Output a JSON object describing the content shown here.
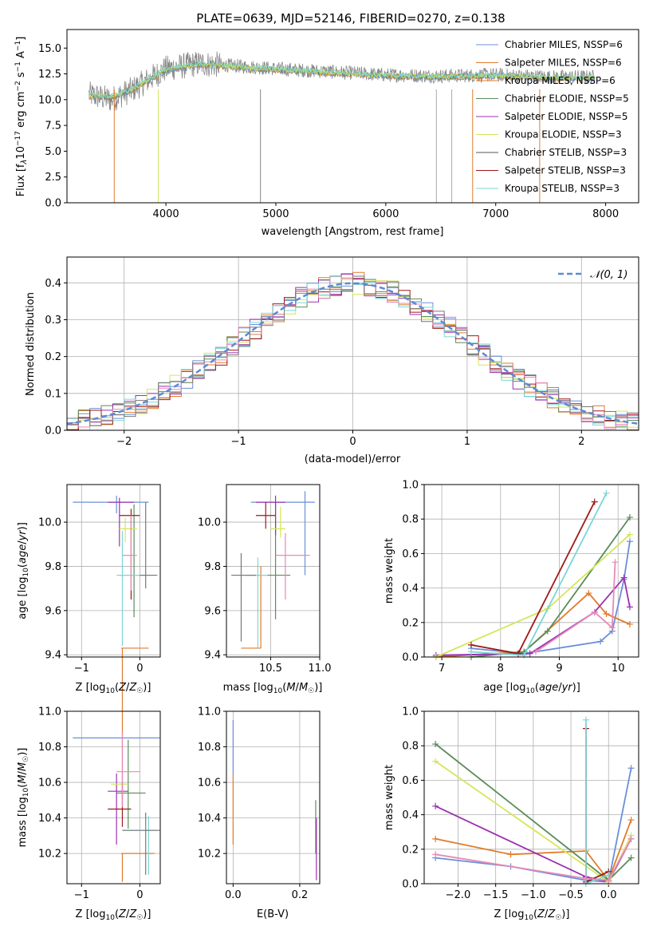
{
  "chart_data": [
    {
      "type": "line",
      "title": "PLATE=0639, MJD=52146, FIBERID=0270, z=0.138",
      "xlabel": "wavelength [Angstrom, rest frame]",
      "ylabel": "Flux [f_λ 10^-17 erg cm^-2 s^-1 A^-1]",
      "xlim": [
        3100,
        8300
      ],
      "ylim": [
        0,
        16.8
      ],
      "xticks": [
        4000,
        5000,
        6000,
        7000,
        8000
      ],
      "yticks": [
        0.0,
        2.5,
        5.0,
        7.5,
        10.0,
        12.5,
        15.0
      ],
      "legend_position": "upper-right",
      "legend": [
        "Chabrier MILES, N_SSP=6",
        "Salpeter MILES, N_SSP=6",
        "Kroupa MILES, N_SSP=6",
        "Chabrier ELODIE, N_SSP=5",
        "Salpeter ELODIE, N_SSP=5",
        "Kroupa ELODIE, N_SSP=3",
        "Chabrier STELIB, N_SSP=3",
        "Salpeter STELIB, N_SSP=3",
        "Kroupa STELIB, N_SSP=3"
      ],
      "data_series": {
        "x": [
          3300,
          3500,
          3700,
          4000,
          4300,
          4600,
          5000,
          5500,
          6000,
          6500,
          7000,
          7500,
          7900
        ],
        "y": [
          10.5,
          10.0,
          11.0,
          13.0,
          13.5,
          13.3,
          13.0,
          12.7,
          12.4,
          12.3,
          12.4,
          12.2,
          12.2
        ]
      },
      "model_series": {
        "x": [
          3300,
          3500,
          3700,
          4000,
          4300,
          4600,
          5000,
          5500,
          6000,
          6500,
          7000,
          7500,
          7900
        ],
        "y": [
          10.4,
          10.2,
          11.0,
          12.9,
          13.4,
          13.2,
          12.9,
          12.6,
          12.3,
          12.2,
          12.3,
          12.1,
          12.1
        ]
      }
    },
    {
      "type": "line",
      "xlabel": "(data-model)/error",
      "ylabel": "Normed distribution",
      "xlim": [
        -2.5,
        2.5
      ],
      "ylim": [
        0,
        0.47
      ],
      "xticks": [
        -2,
        -1,
        0,
        1,
        2
      ],
      "yticks": [
        0.0,
        0.1,
        0.2,
        0.3,
        0.4
      ],
      "legend": [
        "N(0,1)"
      ],
      "legend_position": "upper-right",
      "gaussian": {
        "mu": 0,
        "sigma": 1
      }
    },
    {
      "type": "scatter",
      "xlabel": "Z [log10(Z/Z_sun)]",
      "ylabel": "age  [log10(age/yr)]",
      "xlim": [
        -1.25,
        0.35
      ],
      "ylim": [
        9.39,
        10.17
      ],
      "xticks": [
        -1,
        0
      ],
      "yticks": [
        9.4,
        9.6,
        9.8,
        10.0
      ],
      "points": [
        {
          "x": -0.4,
          "y": 10.09,
          "xerr": [
            0.75,
            0.55
          ],
          "yerr": [
            0.05,
            0.03
          ]
        },
        {
          "x": -0.3,
          "y": 9.43,
          "xerr": [
            0.02,
            0.45
          ],
          "yerr": [
            0.68,
            0.0
          ]
        },
        {
          "x": -0.1,
          "y": 9.76,
          "xerr": [
            0.25,
            0.2
          ],
          "yerr": [
            0.19,
            0.32
          ]
        },
        {
          "x": -0.35,
          "y": 10.09,
          "xerr": [
            0.2,
            0.25
          ],
          "yerr": [
            0.2,
            0.02
          ]
        },
        {
          "x": -0.25,
          "y": 9.97,
          "xerr": [
            0.1,
            0.2
          ],
          "yerr": [
            0.06,
            0.05
          ]
        },
        {
          "x": -0.15,
          "y": 10.03,
          "xerr": [
            0.2,
            0.15
          ],
          "yerr": [
            0.38,
            0.03
          ]
        },
        {
          "x": -0.3,
          "y": 9.76,
          "xerr": [
            0.1,
            0.55
          ],
          "yerr": [
            0.32,
            0.2
          ]
        },
        {
          "x": -0.15,
          "y": 9.85,
          "xerr": [
            0.15,
            0.1
          ],
          "yerr": [
            0.16,
            0.18
          ]
        },
        {
          "x": 0.1,
          "y": 9.76,
          "xerr": [
            0.1,
            0.2
          ],
          "yerr": [
            0.06,
            0.33
          ]
        }
      ]
    },
    {
      "type": "scatter",
      "xlabel": "mass [log10(M/M_sun)]",
      "ylabel": "",
      "xlim": [
        10.05,
        11.0
      ],
      "ylim": [
        9.39,
        10.17
      ],
      "xticks": [
        10.5,
        11.0
      ],
      "yticks": [
        9.4,
        9.6,
        9.8,
        10.0
      ],
      "points": [
        {
          "x": 10.85,
          "y": 10.09,
          "xerr": [
            0.55,
            0.1
          ],
          "yerr": [
            0.33,
            0.05
          ]
        },
        {
          "x": 10.4,
          "y": 9.43,
          "xerr": [
            0.2,
            0.0
          ],
          "yerr": [
            0.0,
            0.37
          ]
        },
        {
          "x": 10.55,
          "y": 9.76,
          "xerr": [
            0.3,
            0.15
          ],
          "yerr": [
            0.2,
            0.33
          ]
        },
        {
          "x": 10.55,
          "y": 10.09,
          "xerr": [
            0.2,
            0.1
          ],
          "yerr": [
            0.15,
            0.03
          ]
        },
        {
          "x": 10.6,
          "y": 9.97,
          "xerr": [
            0.1,
            0.05
          ],
          "yerr": [
            0.04,
            0.1
          ]
        },
        {
          "x": 10.45,
          "y": 10.03,
          "xerr": [
            0.1,
            0.1
          ],
          "yerr": [
            0.06,
            0.06
          ]
        },
        {
          "x": 10.37,
          "y": 9.76,
          "xerr": [
            0.17,
            0.1
          ],
          "yerr": [
            0.33,
            0.08
          ]
        },
        {
          "x": 10.65,
          "y": 9.85,
          "xerr": [
            0.1,
            0.25
          ],
          "yerr": [
            0.2,
            0.1
          ]
        },
        {
          "x": 10.2,
          "y": 9.76,
          "xerr": [
            0.1,
            0.15
          ],
          "yerr": [
            0.3,
            0.1
          ]
        }
      ]
    },
    {
      "type": "line",
      "xlabel": "age  [log10(age/yr)]",
      "ylabel": "mass weight",
      "xlim": [
        6.7,
        10.35
      ],
      "ylim": [
        0,
        1.0
      ],
      "xticks": [
        7,
        8,
        9,
        10
      ],
      "yticks": [
        0.0,
        0.2,
        0.4,
        0.6,
        0.8,
        1.0
      ],
      "series": [
        {
          "x": [
            7.5,
            8.4,
            9.7,
            9.9,
            10.1,
            10.2
          ],
          "y": [
            0.05,
            0.02,
            0.09,
            0.15,
            0.45,
            0.67
          ]
        },
        {
          "x": [
            6.9,
            8.4,
            9.5,
            9.8,
            10.2
          ],
          "y": [
            0.0,
            0.03,
            0.37,
            0.25,
            0.19
          ]
        },
        {
          "x": [
            7.5,
            8.4,
            8.8,
            10.2
          ],
          "y": [
            0.0,
            0.03,
            0.15,
            0.81
          ]
        },
        {
          "x": [
            6.9,
            8.5,
            9.6,
            10.1,
            10.2
          ],
          "y": [
            0.01,
            0.02,
            0.26,
            0.46,
            0.29
          ]
        },
        {
          "x": [
            6.9,
            8.8,
            10.2
          ],
          "y": [
            0.0,
            0.28,
            0.71
          ]
        },
        {
          "x": [
            7.5,
            8.3,
            9.6
          ],
          "y": [
            0.07,
            0.02,
            0.9
          ]
        },
        {
          "x": [
            7.5,
            8.4,
            9.8
          ],
          "y": [
            0.03,
            0.01,
            0.95
          ]
        },
        {
          "x": [
            8.6,
            9.6,
            9.9,
            9.95
          ],
          "y": [
            0.03,
            0.26,
            0.17,
            0.55
          ]
        }
      ]
    },
    {
      "type": "scatter",
      "xlabel": "Z [log10(Z/Z_sun)]",
      "ylabel": "mass [log10(M/M_sun)]",
      "xlim": [
        -1.25,
        0.35
      ],
      "ylim": [
        10.03,
        11.0
      ],
      "xticks": [
        -1,
        0
      ],
      "yticks": [
        10.2,
        10.4,
        10.6,
        10.8,
        11.0
      ],
      "points": [
        {
          "x": -0.3,
          "y": 10.85,
          "xerr": [
            0.85,
            0.65
          ],
          "yerr": [
            0.0,
            0.0
          ]
        },
        {
          "x": -0.3,
          "y": 10.2,
          "xerr": [
            0.02,
            0.55
          ],
          "yerr": [
            0.16,
            0.0
          ]
        },
        {
          "x": -0.2,
          "y": 10.54,
          "xerr": [
            0.2,
            0.3
          ],
          "yerr": [
            0.2,
            0.3
          ]
        },
        {
          "x": -0.4,
          "y": 10.55,
          "xerr": [
            0.15,
            0.2
          ],
          "yerr": [
            0.3,
            0.1
          ]
        },
        {
          "x": -0.3,
          "y": 10.59,
          "xerr": [
            0.2,
            0.1
          ],
          "yerr": [
            0.15,
            0.06
          ]
        },
        {
          "x": -0.3,
          "y": 10.45,
          "xerr": [
            0.25,
            0.15
          ],
          "yerr": [
            0.1,
            0.15
          ]
        },
        {
          "x": 0.15,
          "y": 10.33,
          "xerr": [
            0.45,
            0.15
          ],
          "yerr": [
            0.25,
            0.08
          ]
        },
        {
          "x": -0.3,
          "y": 10.66,
          "xerr": [
            0.1,
            0.3
          ],
          "yerr": [
            0.2,
            0.22
          ]
        },
        {
          "x": 0.1,
          "y": 10.33,
          "xerr": [
            0.4,
            0.25
          ],
          "yerr": [
            0.25,
            0.1
          ]
        }
      ]
    },
    {
      "type": "scatter",
      "xlabel": "E(B-V)",
      "ylabel": "",
      "xlim": [
        -0.02,
        0.26
      ],
      "ylim": [
        10.03,
        11.0
      ],
      "xticks": [
        0.0,
        0.2
      ],
      "yticks": [
        10.2,
        10.4,
        10.6,
        10.8,
        11.0
      ],
      "points": [
        {
          "x": 0.0,
          "y": 10.8,
          "yerr": [
            0.15,
            0.15
          ]
        },
        {
          "x": 0.0,
          "y": 10.5,
          "yerr": [
            0.25,
            0.15
          ]
        },
        {
          "x": 0.248,
          "y": 10.3,
          "yerr": [
            0.1,
            0.2
          ]
        },
        {
          "x": 0.25,
          "y": 10.2,
          "yerr": [
            0.15,
            0.2
          ]
        }
      ]
    },
    {
      "type": "line",
      "xlabel": "Z [log10(Z/Z_sun)]",
      "ylabel": "mass weight",
      "xlim": [
        -2.45,
        0.4
      ],
      "ylim": [
        0,
        1.0
      ],
      "xticks": [
        -2.0,
        -1.5,
        -1.0,
        -0.5,
        0.0
      ],
      "yticks": [
        0.0,
        0.2,
        0.4,
        0.6,
        0.8,
        1.0
      ],
      "series": [
        {
          "x": [
            -2.3,
            -1.3,
            -0.3,
            0.0,
            0.3
          ],
          "y": [
            0.15,
            0.1,
            0.02,
            0.01,
            0.67
          ]
        },
        {
          "x": [
            -2.3,
            -1.3,
            -0.3,
            0.0,
            0.3
          ],
          "y": [
            0.26,
            0.17,
            0.19,
            0.02,
            0.37
          ]
        },
        {
          "x": [
            -2.3,
            0.0,
            0.3
          ],
          "y": [
            0.81,
            0.02,
            0.15
          ]
        },
        {
          "x": [
            -2.3,
            -0.3,
            0.0,
            0.3
          ],
          "y": [
            0.45,
            0.04,
            0.01,
            0.26
          ]
        },
        {
          "x": [
            -2.3,
            0.0,
            0.3
          ],
          "y": [
            0.71,
            0.01,
            0.28
          ]
        },
        {
          "x": [
            -0.3,
            -0.3,
            0.0
          ],
          "y": [
            0.9,
            0.01,
            0.07
          ]
        },
        {
          "x": [
            -0.3,
            -0.3,
            0.0
          ],
          "y": [
            0.95,
            0.0,
            0.05
          ]
        },
        {
          "x": [
            -2.3,
            -0.3,
            0.0,
            0.3
          ],
          "y": [
            0.17,
            0.03,
            0.02,
            0.26
          ]
        }
      ]
    }
  ]
}
